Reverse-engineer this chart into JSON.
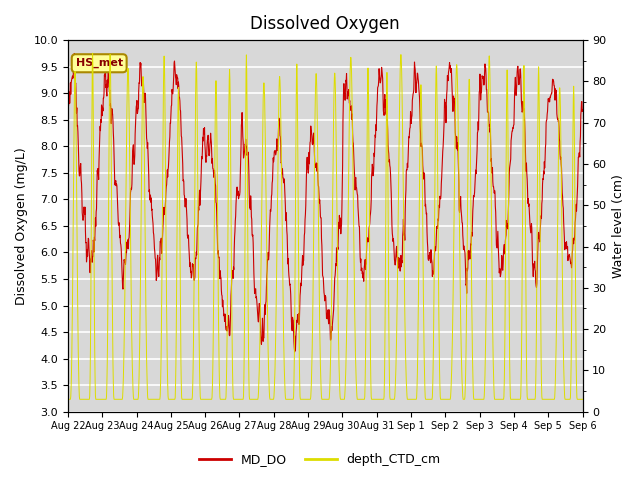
{
  "title": "Dissolved Oxygen",
  "ylabel_left": "Dissolved Oxygen (mg/L)",
  "ylabel_right": "Water level (cm)",
  "ylim_left": [
    3.0,
    10.0
  ],
  "ylim_right": [
    0,
    90
  ],
  "yticks_left": [
    3.0,
    3.5,
    4.0,
    4.5,
    5.0,
    5.5,
    6.0,
    6.5,
    7.0,
    7.5,
    8.0,
    8.5,
    9.0,
    9.5,
    10.0
  ],
  "yticks_right": [
    0,
    10,
    20,
    30,
    40,
    50,
    60,
    70,
    80,
    90
  ],
  "color_do": "#cc0000",
  "color_depth": "#dddd00",
  "legend_do": "MD_DO",
  "legend_depth": "depth_CTD_cm",
  "annotation_text": "HS_met",
  "annotation_color": "#ffff99",
  "annotation_border": "#aa8800",
  "x_tick_labels": [
    "Aug 22",
    "Aug 23",
    "Aug 24",
    "Aug 25",
    "Aug 26",
    "Aug 27",
    "Aug 28",
    "Aug 29",
    "Aug 30",
    "Aug 31",
    "Sep 1",
    "Sep 2",
    "Sep 3",
    "Sep 4",
    "Sep 5",
    "Sep 6"
  ],
  "background_inner": "#d8d8d8",
  "background_outer": "#ffffff",
  "grid_color": "#ffffff",
  "title_fontsize": 12,
  "label_fontsize": 9
}
